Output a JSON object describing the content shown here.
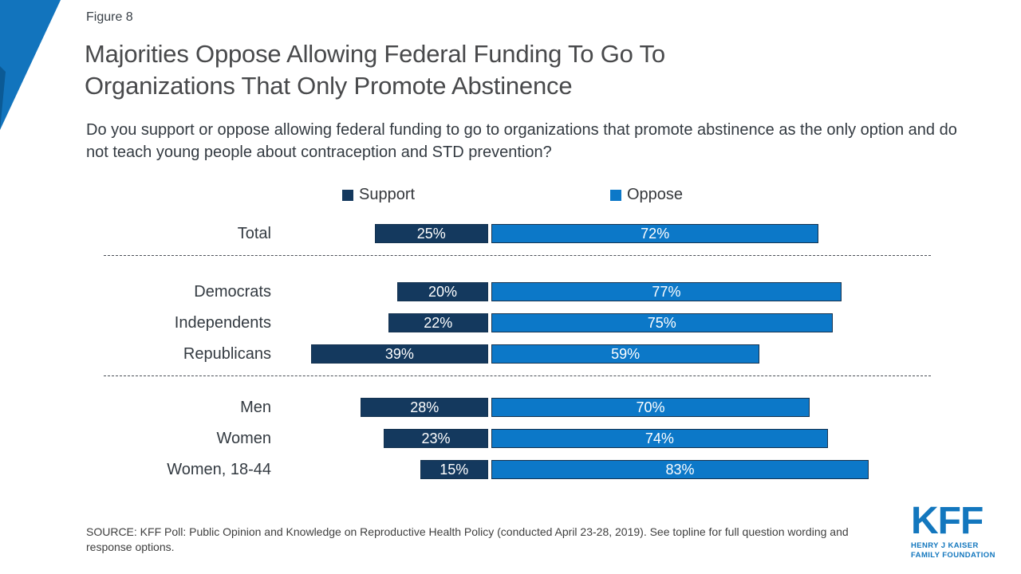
{
  "figure_label": "Figure 8",
  "title_line1": "Majorities Oppose Allowing Federal Funding To Go To",
  "title_line2": "Organizations That Only Promote Abstinence",
  "subtitle": "Do you support or oppose allowing federal funding to go to organizations that promote abstinence as the only option and do not teach young people about contraception and STD prevention?",
  "colors": {
    "support": "#14395E",
    "oppose": "#0C78C8",
    "bar_border": "#14324F",
    "accent_triangle": "#1274BD",
    "accent_triangle_dark": "#0B5A95",
    "kff_blue": "#1377BE"
  },
  "legend": [
    {
      "label": "Support",
      "color": "#14395E"
    },
    {
      "label": "Oppose",
      "color": "#0C78C8"
    }
  ],
  "chart_data": {
    "type": "bar",
    "orientation": "horizontal-diverging",
    "categories": [
      "Total",
      "Democrats",
      "Independents",
      "Republicans",
      "Men",
      "Women",
      "Women, 18-44"
    ],
    "groups": [
      [
        "Total"
      ],
      [
        "Democrats",
        "Independents",
        "Republicans"
      ],
      [
        "Men",
        "Women",
        "Women, 18-44"
      ]
    ],
    "series": [
      {
        "name": "Support",
        "values": [
          25,
          20,
          22,
          39,
          28,
          23,
          15
        ]
      },
      {
        "name": "Oppose",
        "values": [
          72,
          77,
          75,
          59,
          70,
          74,
          83
        ]
      }
    ],
    "value_suffix": "%",
    "xlim": [
      0,
      100
    ],
    "grid": false,
    "legend_position": "top"
  },
  "source": "SOURCE: KFF Poll: Public Opinion and Knowledge on Reproductive Health Policy (conducted April 23-28, 2019). See topline for full question wording and response options.",
  "logo": {
    "text": "KFF",
    "sub_line1": "HENRY J KAISER",
    "sub_line2": "FAMILY FOUNDATION"
  }
}
